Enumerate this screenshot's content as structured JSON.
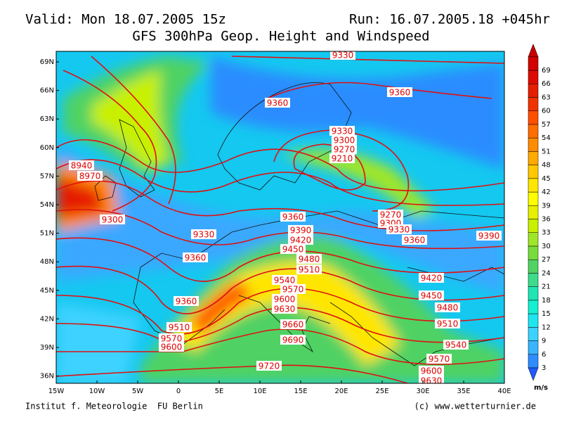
{
  "header": {
    "valid": "Valid: Mon 18.07.2005 15z",
    "run": "Run: 16.07.2005.18 +045hr",
    "title": "GFS 300hPa Geop. Height and Windspeed"
  },
  "map": {
    "lat_labels": [
      "69N",
      "66N",
      "63N",
      "60N",
      "57N",
      "54N",
      "51N",
      "48N",
      "45N",
      "42N",
      "39N",
      "36N"
    ],
    "lon_labels": [
      "15W",
      "10W",
      "5W",
      "0",
      "5E",
      "10E",
      "15E",
      "20E",
      "25E",
      "30E",
      "35E",
      "40E"
    ],
    "contour_labels": [
      9330,
      9360,
      9360,
      8940,
      8970,
      9330,
      9300,
      9270,
      9210,
      9360,
      9330,
      9390,
      9420,
      9450,
      9480,
      9510,
      9360,
      9540,
      9570,
      9600,
      9630,
      9660,
      9690,
      9720,
      9270,
      9300,
      9330,
      9360,
      9390,
      9420,
      9450,
      9480,
      9510,
      9540,
      9570,
      9600,
      9630,
      9360,
      9510,
      9570,
      9600,
      9300
    ]
  },
  "colorbar": {
    "unit": "m/s",
    "ticks": [
      3,
      6,
      9,
      12,
      15,
      18,
      21,
      24,
      27,
      30,
      33,
      36,
      39,
      42,
      45,
      48,
      51,
      54,
      57,
      60,
      63,
      66,
      69
    ],
    "colors": [
      "#2f8cff",
      "#3ab4ff",
      "#3cd2ff",
      "#1ee6f0",
      "#14f0d2",
      "#1ee6b4",
      "#3cdc8c",
      "#50d264",
      "#78dc3c",
      "#a0e628",
      "#c8f000",
      "#e6f000",
      "#ffff00",
      "#ffe600",
      "#ffc800",
      "#ffaa00",
      "#ff8c00",
      "#ff6e00",
      "#ff5000",
      "#f03200",
      "#e61e00",
      "#dc0a00",
      "#d20000"
    ],
    "low_color": "#1e5aff",
    "high_color": "#c80000"
  },
  "footer": {
    "left": "Institut f. Meteorologie  FU Berlin",
    "right": "(c) www.wetterturnier.de"
  }
}
